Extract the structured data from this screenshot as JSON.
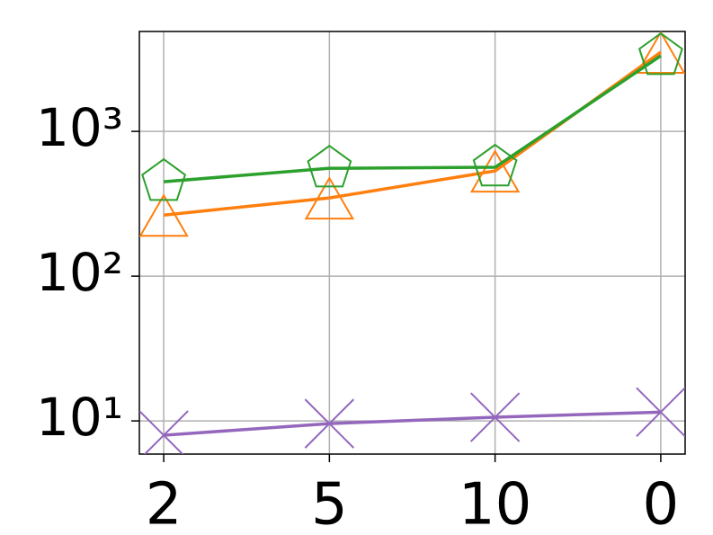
{
  "chart_data": {
    "type": "line",
    "log_y": true,
    "grid": true,
    "categories": [
      "2",
      "5",
      "10",
      "0"
    ],
    "ylim": [
      5.9,
      4900
    ],
    "yticks": [
      {
        "value": 10,
        "label": "10¹"
      },
      {
        "value": 100,
        "label": "10²"
      },
      {
        "value": 1000,
        "label": "10³"
      }
    ],
    "series": [
      {
        "color": "#9467bd",
        "marker": "x",
        "values": [
          7.96,
          9.58,
          10.6,
          11.5
        ]
      },
      {
        "color": "#ff7f0e",
        "marker": "triangle",
        "values": [
          264,
          347,
          533,
          3524
        ]
      },
      {
        "color": "#2ca02c",
        "marker": "pentagon",
        "values": [
          449,
          556,
          565,
          3326
        ]
      }
    ]
  }
}
